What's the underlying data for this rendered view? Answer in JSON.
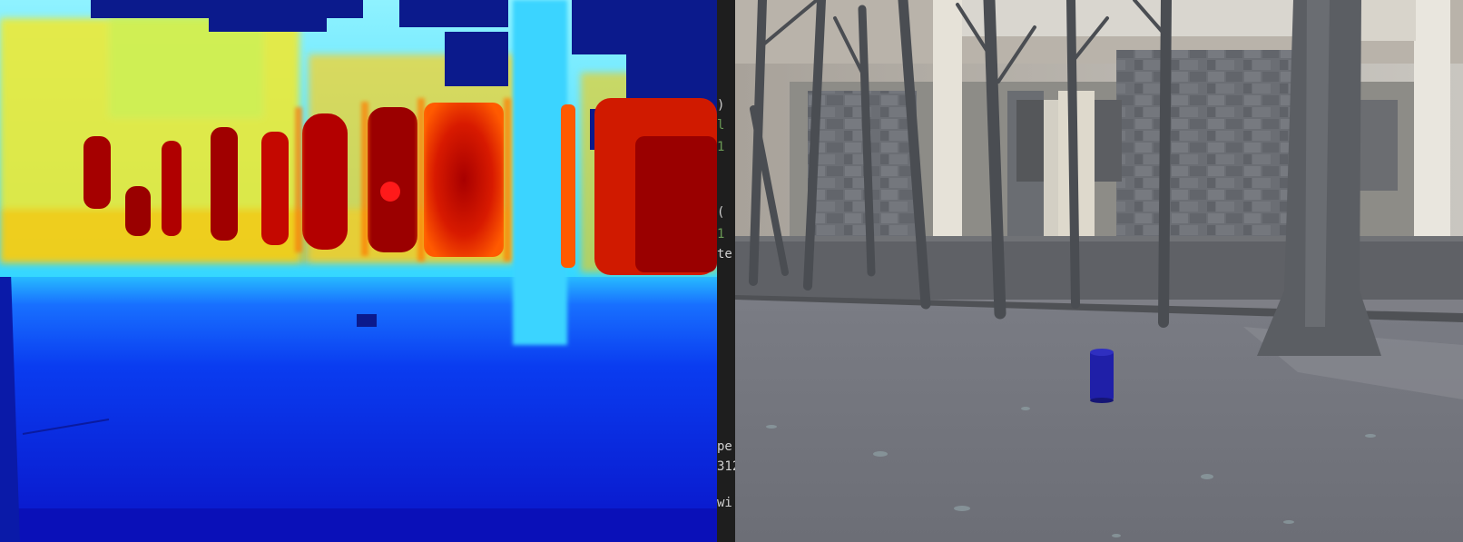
{
  "editor_fragments": [
    {
      "text": ")",
      "style": "plain"
    },
    {
      "text": "l",
      "style": "green"
    },
    {
      "text": "1",
      "style": "green"
    },
    {
      "text": "(",
      "style": "plain"
    },
    {
      "text": "1",
      "style": "green"
    },
    {
      "text": "te",
      "style": "plain"
    },
    {
      "text": "pe",
      "style": "plain"
    },
    {
      "text": "312",
      "style": "plain"
    },
    {
      "text": "wi",
      "style": "plain"
    }
  ],
  "depth_view": {
    "colormap": "jet",
    "marker_color": "#ff1a1a"
  },
  "rgb_view": {
    "object_color": "#1f1fa8"
  }
}
